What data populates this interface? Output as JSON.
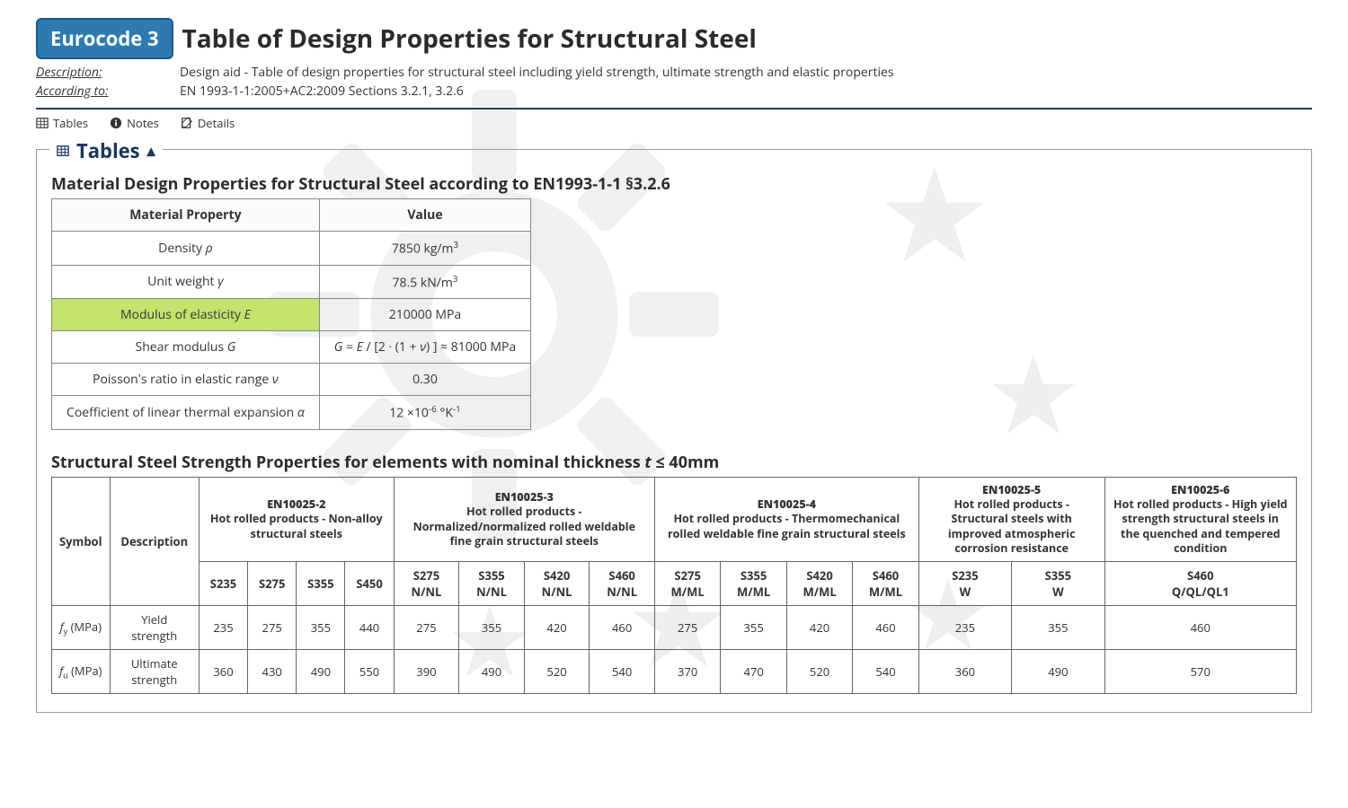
{
  "header": {
    "badge": "Eurocode 3",
    "title": "Table of Design Properties for Structural Steel",
    "meta": [
      {
        "label": "Description:",
        "value": "Design aid - Table of design properties for structural steel including yield strength, ultimate strength and elastic properties"
      },
      {
        "label": "According to:",
        "value": "EN 1993-1-1:2005+AC2:2009 Sections 3.2.1, 3.2.6"
      }
    ]
  },
  "nav": [
    {
      "icon": "table",
      "label": "Tables"
    },
    {
      "icon": "info",
      "label": "Notes"
    },
    {
      "icon": "edit",
      "label": "Details"
    }
  ],
  "panel_title": "Tables",
  "table1": {
    "title": "Material Design Properties for Structural Steel according to EN1993-1-1 §3.2.6",
    "headers": [
      "Material Property",
      "Value"
    ],
    "rows": [
      {
        "prop_html": "Density <i>ρ</i>",
        "val_html": "7850 kg/m<sup>3</sup>",
        "highlight": false
      },
      {
        "prop_html": "Unit weight <i>γ</i>",
        "val_html": "78.5 kN/m<sup>3</sup>",
        "highlight": false
      },
      {
        "prop_html": "Modulus of elasticity <i>E</i>",
        "val_html": "210000 MPa",
        "highlight": true
      },
      {
        "prop_html": "Shear modulus <i>G</i>",
        "val_html": "<i>G</i> = <i>E</i> / [2 · (1 + <i>ν</i>) ] ≈ 81000 MPa",
        "highlight": false
      },
      {
        "prop_html": "Poisson's ratio in elastic range <i>ν</i>",
        "val_html": "0.30",
        "highlight": false
      },
      {
        "prop_html": "Coefficient of linear thermal expansion <i>α</i>",
        "val_html": "12 ×10<sup>-6</sup> °K<sup>-1</sup>",
        "highlight": false
      }
    ]
  },
  "table2": {
    "title_html": "Structural Steel Strength Properties for elements with nominal thickness <i>t</i> ≤ 40mm",
    "left_headers": [
      "Symbol",
      "Description"
    ],
    "groups": [
      {
        "std": "EN10025-2",
        "desc": "Hot rolled products - Non-alloy structural steels",
        "grades": [
          "S235",
          "S275",
          "S355",
          "S450"
        ]
      },
      {
        "std": "EN10025-3",
        "desc": "Hot rolled products - Normalized/normalized rolled weldable fine grain structural steels",
        "grades": [
          "S275 N/NL",
          "S355 N/NL",
          "S420 N/NL",
          "S460 N/NL"
        ]
      },
      {
        "std": "EN10025-4",
        "desc": "Hot rolled products - Thermomechanical rolled weldable fine grain structural steels",
        "grades": [
          "S275 M/ML",
          "S355 M/ML",
          "S420 M/ML",
          "S460 M/ML"
        ]
      },
      {
        "std": "EN10025-5",
        "desc": "Hot rolled products - Structural steels with improved atmospheric corrosion resistance",
        "grades": [
          "S235 W",
          "S355 W"
        ]
      },
      {
        "std": "EN10025-6",
        "desc": "Hot rolled products - High yield strength structural steels in the quenched and tempered condition",
        "grades": [
          "S460 Q/QL/QL1"
        ]
      }
    ],
    "rows": [
      {
        "symbol_html": "<i>f</i><sub>y</sub> (MPa)",
        "desc": "Yield strength",
        "vals": [
          235,
          275,
          355,
          440,
          275,
          355,
          420,
          460,
          275,
          355,
          420,
          460,
          235,
          355,
          460
        ]
      },
      {
        "symbol_html": "<i>f</i><sub>u</sub> (MPa)",
        "desc": "Ultimate strength",
        "vals": [
          360,
          430,
          490,
          550,
          390,
          490,
          520,
          540,
          370,
          470,
          520,
          540,
          360,
          490,
          570
        ]
      }
    ]
  },
  "colors": {
    "badge_bg": "#2d7ab0",
    "highlight_bg": "#c5e26d",
    "panel_title": "#1b365d",
    "border": "#666666",
    "watermark": "#9aa3ad"
  }
}
